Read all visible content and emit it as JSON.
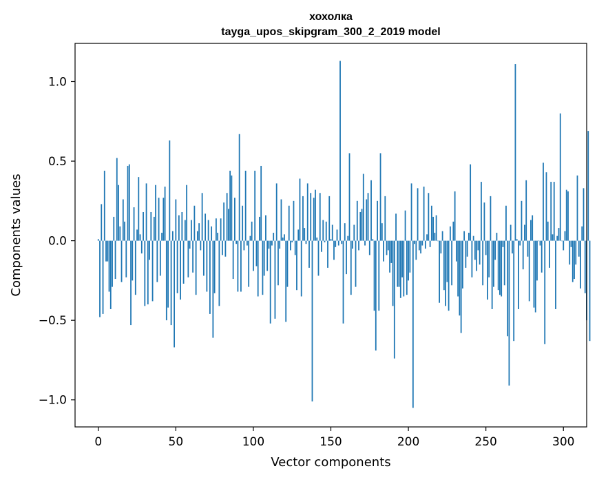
{
  "chart_data": {
    "type": "bar",
    "title": "хохолка",
    "subtitle": "tayga_upos_skipgram_300_2_2019 model",
    "xlabel": "Vector components",
    "ylabel": "Components values",
    "xlim": [
      -15,
      315
    ],
    "ylim": [
      -1.17,
      1.24
    ],
    "xticks": [
      0,
      50,
      100,
      150,
      200,
      250,
      300
    ],
    "yticks": [
      -1.0,
      -0.5,
      0.0,
      0.5,
      1.0
    ],
    "xtick_labels": [
      "0",
      "50",
      "100",
      "150",
      "200",
      "250",
      "300"
    ],
    "ytick_labels": [
      "−1.0",
      "−0.5",
      "0.0",
      "0.5",
      "1.0"
    ],
    "bar_color": "#1f77b4",
    "grid": false,
    "values": [
      0.01,
      -0.48,
      0.23,
      -0.46,
      0.44,
      -0.13,
      -0.13,
      -0.32,
      -0.43,
      -0.29,
      0.15,
      -0.24,
      0.52,
      0.35,
      0.09,
      -0.26,
      0.26,
      0.12,
      -0.23,
      0.47,
      0.48,
      -0.53,
      -0.25,
      0.21,
      -0.34,
      0.07,
      0.4,
      0.04,
      -0.08,
      0.18,
      -0.41,
      0.36,
      -0.4,
      -0.12,
      0.18,
      -0.38,
      0.15,
      0.35,
      -0.26,
      0.27,
      -0.22,
      0.05,
      0.27,
      0.34,
      -0.5,
      -0.42,
      0.63,
      -0.53,
      0.06,
      -0.67,
      0.26,
      -0.33,
      0.16,
      -0.37,
      0.18,
      -0.27,
      0.13,
      0.35,
      -0.23,
      -0.05,
      0.13,
      -0.2,
      0.22,
      -0.34,
      0.06,
      0.11,
      -0.06,
      0.3,
      -0.22,
      0.17,
      -0.32,
      0.13,
      -0.46,
      0.09,
      -0.61,
      -0.33,
      0.14,
      0.05,
      -0.41,
      0.14,
      -0.09,
      0.24,
      -0.1,
      0.3,
      0.2,
      0.44,
      0.41,
      -0.24,
      0.27,
      -0.02,
      -0.32,
      0.67,
      -0.32,
      0.22,
      -0.06,
      0.44,
      -0.03,
      -0.29,
      0.03,
      0.12,
      -0.19,
      0.44,
      -0.16,
      -0.35,
      0.15,
      0.47,
      -0.34,
      -0.22,
      0.16,
      -0.19,
      -0.05,
      -0.52,
      -0.03,
      0.05,
      -0.49,
      0.36,
      -0.28,
      -0.05,
      0.26,
      0.02,
      0.04,
      -0.51,
      -0.29,
      0.22,
      -0.06,
      -0.01,
      0.25,
      -0.09,
      -0.31,
      0.07,
      0.39,
      -0.35,
      0.28,
      0.08,
      -0.02,
      0.36,
      -0.17,
      0.3,
      -1.01,
      0.27,
      0.32,
      0.02,
      -0.22,
      0.3,
      -0.07,
      0.13,
      -0.01,
      0.12,
      -0.17,
      0.28,
      0.01,
      0.1,
      -0.12,
      -0.04,
      0.07,
      -0.03,
      1.13,
      -0.02,
      -0.52,
      0.11,
      -0.21,
      0.03,
      0.55,
      -0.34,
      -0.05,
      0.1,
      -0.29,
      0.25,
      -0.06,
      0.18,
      0.2,
      0.42,
      -0.03,
      0.26,
      0.3,
      -0.09,
      0.38,
      0.01,
      -0.44,
      -0.69,
      0.25,
      -0.44,
      0.55,
      0.11,
      -0.13,
      0.28,
      -0.09,
      -0.06,
      -0.2,
      -0.14,
      -0.41,
      -0.74,
      0.17,
      -0.29,
      -0.29,
      -0.36,
      -0.23,
      -0.35,
      0.19,
      -0.34,
      -0.25,
      -0.2,
      0.36,
      -1.05,
      -0.02,
      -0.12,
      0.33,
      -0.06,
      -0.08,
      -0.03,
      0.34,
      -0.05,
      0.04,
      0.3,
      -0.04,
      0.22,
      0.15,
      0.05,
      0.16,
      0.0,
      -0.39,
      -0.08,
      0.06,
      -0.31,
      -0.41,
      -0.26,
      -0.44,
      0.09,
      -0.28,
      0.12,
      0.31,
      -0.13,
      -0.35,
      -0.47,
      -0.58,
      -0.3,
      0.06,
      -0.17,
      -0.1,
      0.05,
      0.48,
      -0.23,
      0.03,
      -0.12,
      -0.19,
      -0.06,
      -0.15,
      0.37,
      -0.28,
      0.24,
      -0.09,
      -0.37,
      -0.23,
      0.28,
      -0.43,
      -0.29,
      -0.12,
      0.05,
      -0.31,
      -0.34,
      -0.35,
      -0.04,
      -0.28,
      0.22,
      -0.6,
      -0.91,
      0.1,
      -0.08,
      -0.63,
      1.11,
      0.01,
      -0.43,
      -0.03,
      0.25,
      -0.18,
      0.1,
      0.38,
      -0.1,
      -0.38,
      0.13,
      0.16,
      -0.42,
      -0.45,
      -0.25,
      0.0,
      -0.03,
      -0.2,
      0.49,
      -0.65,
      0.43,
      0.12,
      -0.17,
      0.37,
      0.04,
      0.37,
      -0.43,
      0.03,
      0.08,
      0.8,
      0.0,
      -0.06,
      0.06,
      0.32,
      0.31,
      -0.15,
      -0.04,
      -0.26,
      -0.24,
      -0.15,
      0.41,
      -0.1,
      -0.3,
      0.09,
      0.33,
      -0.33,
      -0.5,
      0.69,
      -0.63
    ]
  }
}
